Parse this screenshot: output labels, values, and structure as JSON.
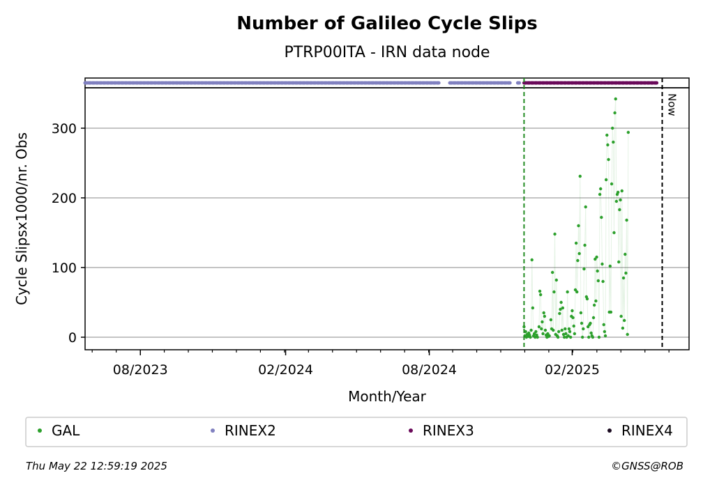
{
  "chart_data": {
    "type": "scatter",
    "title": "Number of Galileo Cycle Slips",
    "subtitle": "PTRP00ITA - IRN data node",
    "xlabel": "Month/Year",
    "ylabel": "Cycle Slipsx1000/nr. Obs",
    "x_range": [
      "2023-05-23",
      "2025-06-26"
    ],
    "xlim_days": [
      0,
      765
    ],
    "ylim": [
      -18,
      358
    ],
    "yticks": [
      0,
      100,
      200,
      300
    ],
    "xticks": [
      {
        "day": 70,
        "label": "08/2023"
      },
      {
        "day": 254,
        "label": "02/2024"
      },
      {
        "day": 436,
        "label": "08/2024"
      },
      {
        "day": 617,
        "label": "02/2025"
      }
    ],
    "grid": "y",
    "legend_position": "bottom",
    "colors": {
      "GAL": "#2ca02c",
      "RINEX2": "#8080c0",
      "RINEX3": "#6a0a5a",
      "RINEX4": "#1a0a20",
      "start_line": "#228b22",
      "now_line": "#000000"
    },
    "now_label": "Now",
    "now_day": 731,
    "start_day": 556,
    "series": [
      {
        "name": "GAL",
        "points": [
          [
            556,
            15
          ],
          [
            557,
            2
          ],
          [
            558,
            8
          ],
          [
            559,
            0
          ],
          [
            560,
            4
          ],
          [
            561,
            1
          ],
          [
            562,
            6
          ],
          [
            563,
            3
          ],
          [
            564,
            0
          ],
          [
            565,
            10
          ],
          [
            566,
            111
          ],
          [
            567,
            42
          ],
          [
            568,
            2
          ],
          [
            569,
            5
          ],
          [
            570,
            0
          ],
          [
            571,
            8
          ],
          [
            572,
            3
          ],
          [
            573,
            0
          ],
          [
            575,
            15
          ],
          [
            576,
            66
          ],
          [
            577,
            61
          ],
          [
            578,
            12
          ],
          [
            579,
            22
          ],
          [
            580,
            5
          ],
          [
            581,
            35
          ],
          [
            582,
            30
          ],
          [
            583,
            10
          ],
          [
            584,
            3
          ],
          [
            585,
            0
          ],
          [
            586,
            5
          ],
          [
            587,
            1
          ],
          [
            588,
            2
          ],
          [
            590,
            25
          ],
          [
            591,
            12
          ],
          [
            592,
            93
          ],
          [
            593,
            10
          ],
          [
            594,
            65
          ],
          [
            595,
            148
          ],
          [
            596,
            4
          ],
          [
            597,
            82
          ],
          [
            598,
            2
          ],
          [
            599,
            0
          ],
          [
            600,
            8
          ],
          [
            601,
            34
          ],
          [
            602,
            40
          ],
          [
            603,
            50
          ],
          [
            604,
            10
          ],
          [
            605,
            42
          ],
          [
            606,
            4
          ],
          [
            607,
            0
          ],
          [
            608,
            12
          ],
          [
            609,
            5
          ],
          [
            610,
            0
          ],
          [
            611,
            65
          ],
          [
            612,
            2
          ],
          [
            613,
            12
          ],
          [
            614,
            8
          ],
          [
            615,
            0
          ],
          [
            616,
            30
          ],
          [
            617,
            38
          ],
          [
            618,
            28
          ],
          [
            619,
            16
          ],
          [
            620,
            5
          ],
          [
            621,
            68
          ],
          [
            622,
            135
          ],
          [
            623,
            65
          ],
          [
            624,
            110
          ],
          [
            625,
            160
          ],
          [
            626,
            120
          ],
          [
            627,
            231
          ],
          [
            628,
            35
          ],
          [
            629,
            20
          ],
          [
            630,
            0
          ],
          [
            631,
            12
          ],
          [
            632,
            98
          ],
          [
            633,
            132
          ],
          [
            634,
            187
          ],
          [
            635,
            58
          ],
          [
            636,
            55
          ],
          [
            637,
            15
          ],
          [
            638,
            0
          ],
          [
            639,
            18
          ],
          [
            640,
            20
          ],
          [
            641,
            6
          ],
          [
            642,
            2
          ],
          [
            643,
            0
          ],
          [
            644,
            28
          ],
          [
            645,
            46
          ],
          [
            646,
            112
          ],
          [
            647,
            52
          ],
          [
            648,
            115
          ],
          [
            649,
            95
          ],
          [
            650,
            81
          ],
          [
            651,
            0
          ],
          [
            652,
            205
          ],
          [
            653,
            213
          ],
          [
            654,
            172
          ],
          [
            655,
            105
          ],
          [
            656,
            80
          ],
          [
            657,
            18
          ],
          [
            658,
            8
          ],
          [
            659,
            2
          ],
          [
            660,
            226
          ],
          [
            661,
            290
          ],
          [
            662,
            276
          ],
          [
            663,
            255
          ],
          [
            664,
            36
          ],
          [
            665,
            102
          ],
          [
            666,
            36
          ],
          [
            667,
            220
          ],
          [
            668,
            300
          ],
          [
            669,
            280
          ],
          [
            670,
            150
          ],
          [
            671,
            322
          ],
          [
            672,
            342
          ],
          [
            673,
            195
          ],
          [
            674,
            205
          ],
          [
            675,
            208
          ],
          [
            676,
            108
          ],
          [
            677,
            183
          ],
          [
            678,
            197
          ],
          [
            679,
            30
          ],
          [
            680,
            210
          ],
          [
            681,
            13
          ],
          [
            682,
            85
          ],
          [
            683,
            24
          ],
          [
            684,
            119
          ],
          [
            685,
            92
          ],
          [
            686,
            168
          ],
          [
            687,
            4
          ],
          [
            688,
            294
          ]
        ]
      },
      {
        "name": "RINEX2",
        "segments": [
          [
            0,
            448
          ],
          [
            462,
            540
          ],
          [
            548,
            550
          ]
        ]
      },
      {
        "name": "RINEX3",
        "segments": [
          [
            556,
            725
          ]
        ]
      },
      {
        "name": "RINEX4",
        "segments": []
      }
    ]
  },
  "legend": [
    {
      "label": "GAL",
      "color": "#2ca02c"
    },
    {
      "label": "RINEX2",
      "color": "#8080c0"
    },
    {
      "label": "RINEX3",
      "color": "#6a0a5a"
    },
    {
      "label": "RINEX4",
      "color": "#1a0a20"
    }
  ],
  "footer": {
    "timestamp": "Thu May 22 12:59:19 2025",
    "credit": "©GNSS@ROB"
  }
}
